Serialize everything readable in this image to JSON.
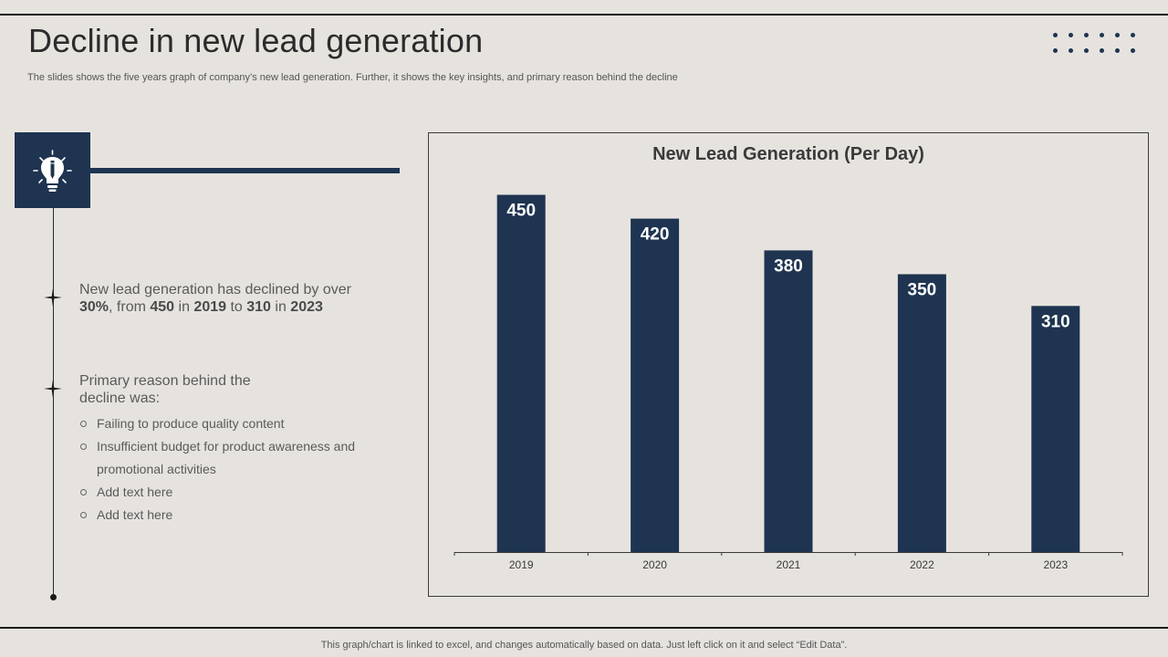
{
  "header": {
    "title": "Decline in new lead generation",
    "subtitle": "The slides shows the five years graph of company’s new lead generation. Further, it shows the key insights, and primary reason behind the decline"
  },
  "insights": {
    "decline": {
      "text_1": "New lead generation has declined by over ",
      "percent": "30%",
      "text_2": ", from ",
      "from_value": "450",
      "text_3": " in ",
      "from_year": "2019",
      "text_4": " to ",
      "to_value": "310",
      "text_5": " in ",
      "to_year": "2023"
    },
    "reason_heading": "Primary reason behind the decline was:",
    "reasons": [
      "Failing to produce quality content",
      "Insufficient budget for product awareness and promotional activities",
      "Add text here",
      "Add text here"
    ]
  },
  "chart_data": {
    "type": "bar",
    "title": "New Lead Generation (Per Day)",
    "categories": [
      "2019",
      "2020",
      "2021",
      "2022",
      "2023"
    ],
    "values": [
      450,
      420,
      380,
      350,
      310
    ],
    "xlabel": "",
    "ylabel": "",
    "ylim": [
      0,
      500
    ],
    "grid": false,
    "data_labels": true,
    "bar_color": "#1e3450"
  },
  "colors": {
    "accent": "#1e3450",
    "background": "#e6e3df"
  },
  "icons": {
    "box_icon": "lightbulb-pencil-icon",
    "timeline_marker": "four-point-star-icon"
  },
  "footer": {
    "note": "This graph/chart is linked to excel,  and changes automatically based on data. Just left click on it and select “Edit Data”."
  }
}
